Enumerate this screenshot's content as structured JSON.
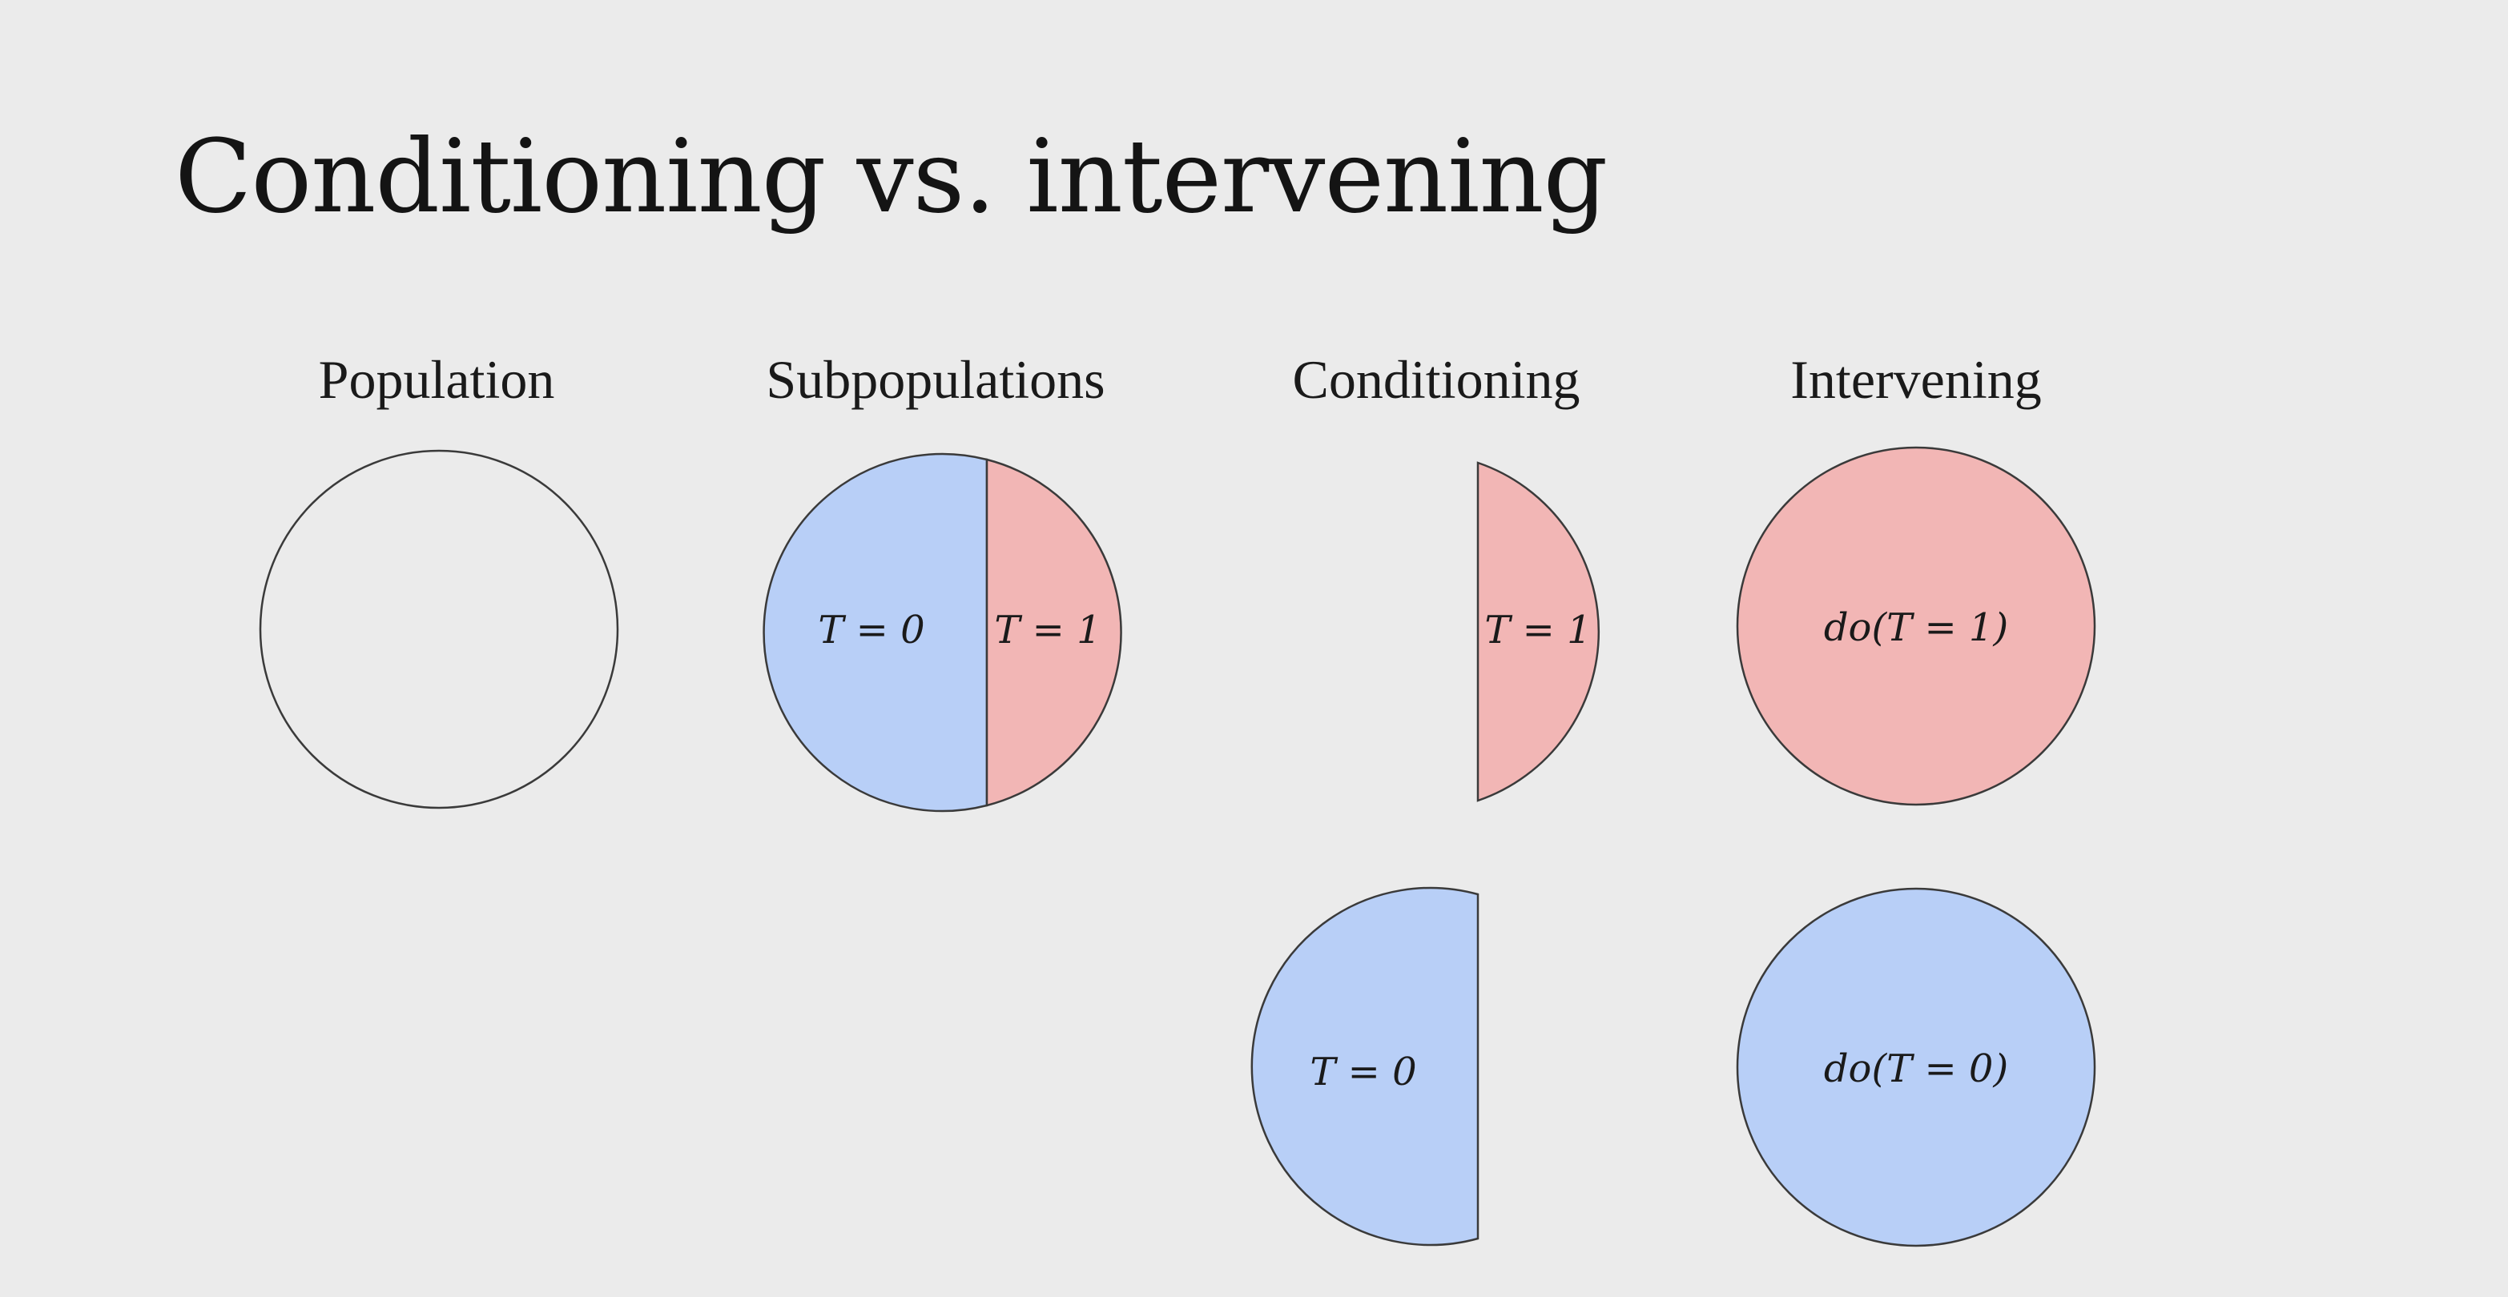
{
  "title": "Conditioning vs. intervening",
  "colors": {
    "background": "#ebebeb",
    "treated": "#f2b6b5",
    "control": "#b8cff7",
    "outline": "#3a3a3a"
  },
  "columns": {
    "population": "Population",
    "subpopulations": "Subpopulations",
    "conditioning": "Conditioning",
    "intervening": "Intervening"
  },
  "labels": {
    "sub_t0": "T = 0",
    "sub_t1": "T = 1",
    "cond_t1": "T = 1",
    "cond_t0": "T = 0",
    "int_t1": "do(T = 1)",
    "int_t0": "do(T = 0)"
  }
}
